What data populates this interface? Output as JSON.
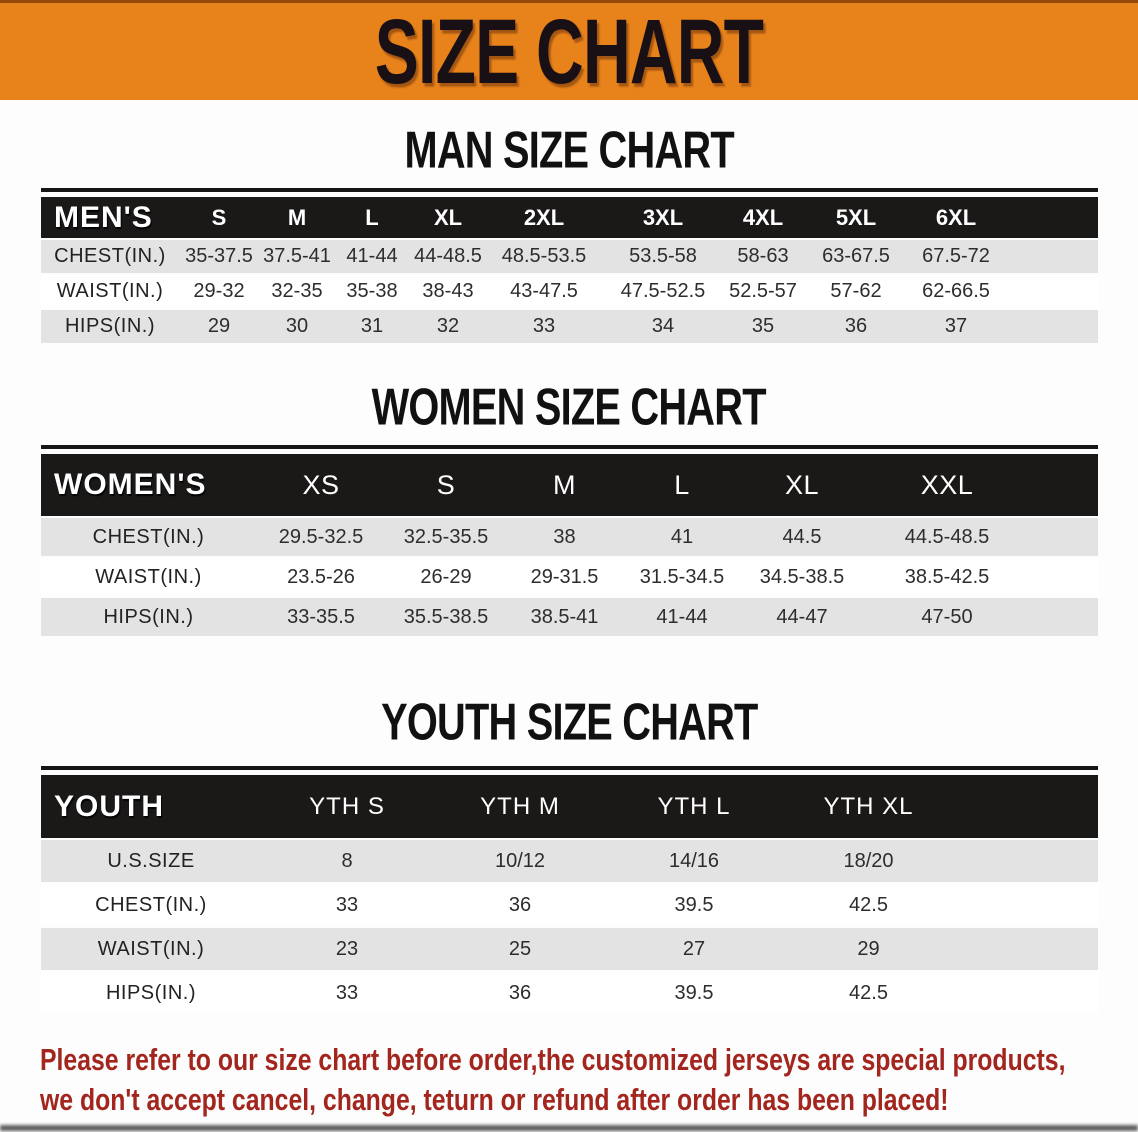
{
  "banner": {
    "title": "SIZE CHART"
  },
  "sections": [
    {
      "heading": "MAN SIZE CHART",
      "table": {
        "corner": "MEN'S",
        "sizes": [
          "S",
          "M",
          "L",
          "XL",
          "2XL",
          "3XL",
          "4XL",
          "5XL",
          "6XL"
        ],
        "rows": [
          {
            "label": "CHEST(IN.)",
            "values": [
              "35-37.5",
              "37.5-41",
              "41-44",
              "44-48.5",
              "48.5-53.5",
              "53.5-58",
              "58-63",
              "63-67.5",
              "67.5-72"
            ]
          },
          {
            "label": "WAIST(IN.)",
            "values": [
              "29-32",
              "32-35",
              "35-38",
              "38-43",
              "43-47.5",
              "47.5-52.5",
              "52.5-57",
              "57-62",
              "62-66.5"
            ]
          },
          {
            "label": "HIPS(IN.)",
            "values": [
              "29",
              "30",
              "31",
              "32",
              "33",
              "34",
              "35",
              "36",
              "37"
            ]
          }
        ]
      }
    },
    {
      "heading": "WOMEN SIZE CHART",
      "table": {
        "corner": "WOMEN'S",
        "sizes": [
          "XS",
          "S",
          "M",
          "L",
          "XL",
          "XXL"
        ],
        "rows": [
          {
            "label": "CHEST(IN.)",
            "values": [
              "29.5-32.5",
              "32.5-35.5",
              "38",
              "41",
              "44.5",
              "44.5-48.5"
            ]
          },
          {
            "label": "WAIST(IN.)",
            "values": [
              "23.5-26",
              "26-29",
              "29-31.5",
              "31.5-34.5",
              "34.5-38.5",
              "38.5-42.5"
            ]
          },
          {
            "label": "HIPS(IN.)",
            "values": [
              "33-35.5",
              "35.5-38.5",
              "38.5-41",
              "41-44",
              "44-47",
              "47-50"
            ]
          }
        ]
      }
    },
    {
      "heading": "YOUTH SIZE CHART",
      "table": {
        "corner": "YOUTH",
        "sizes": [
          "YTH S",
          "YTH M",
          "YTH L",
          "YTH XL"
        ],
        "rows": [
          {
            "label": "U.S.SIZE",
            "values": [
              "8",
              "10/12",
              "14/16",
              "18/20"
            ]
          },
          {
            "label": "CHEST(IN.)",
            "values": [
              "33",
              "36",
              "39.5",
              "42.5"
            ]
          },
          {
            "label": "WAIST(IN.)",
            "values": [
              "23",
              "25",
              "27",
              "29"
            ]
          },
          {
            "label": "HIPS(IN.)",
            "values": [
              "33",
              "36",
              "39.5",
              "42.5"
            ]
          }
        ]
      }
    }
  ],
  "disclaimer": {
    "line1": "Please refer to our size chart before order,the customized jerseys are special products,",
    "line2": "we don't accept cancel, change, teturn or refund after order has been placed!"
  },
  "colors": {
    "banner_orange": "#E8821B",
    "band_black": "#1B1818",
    "row_gray": "#E3E3E3",
    "disclaimer_red": "#A3261E"
  }
}
